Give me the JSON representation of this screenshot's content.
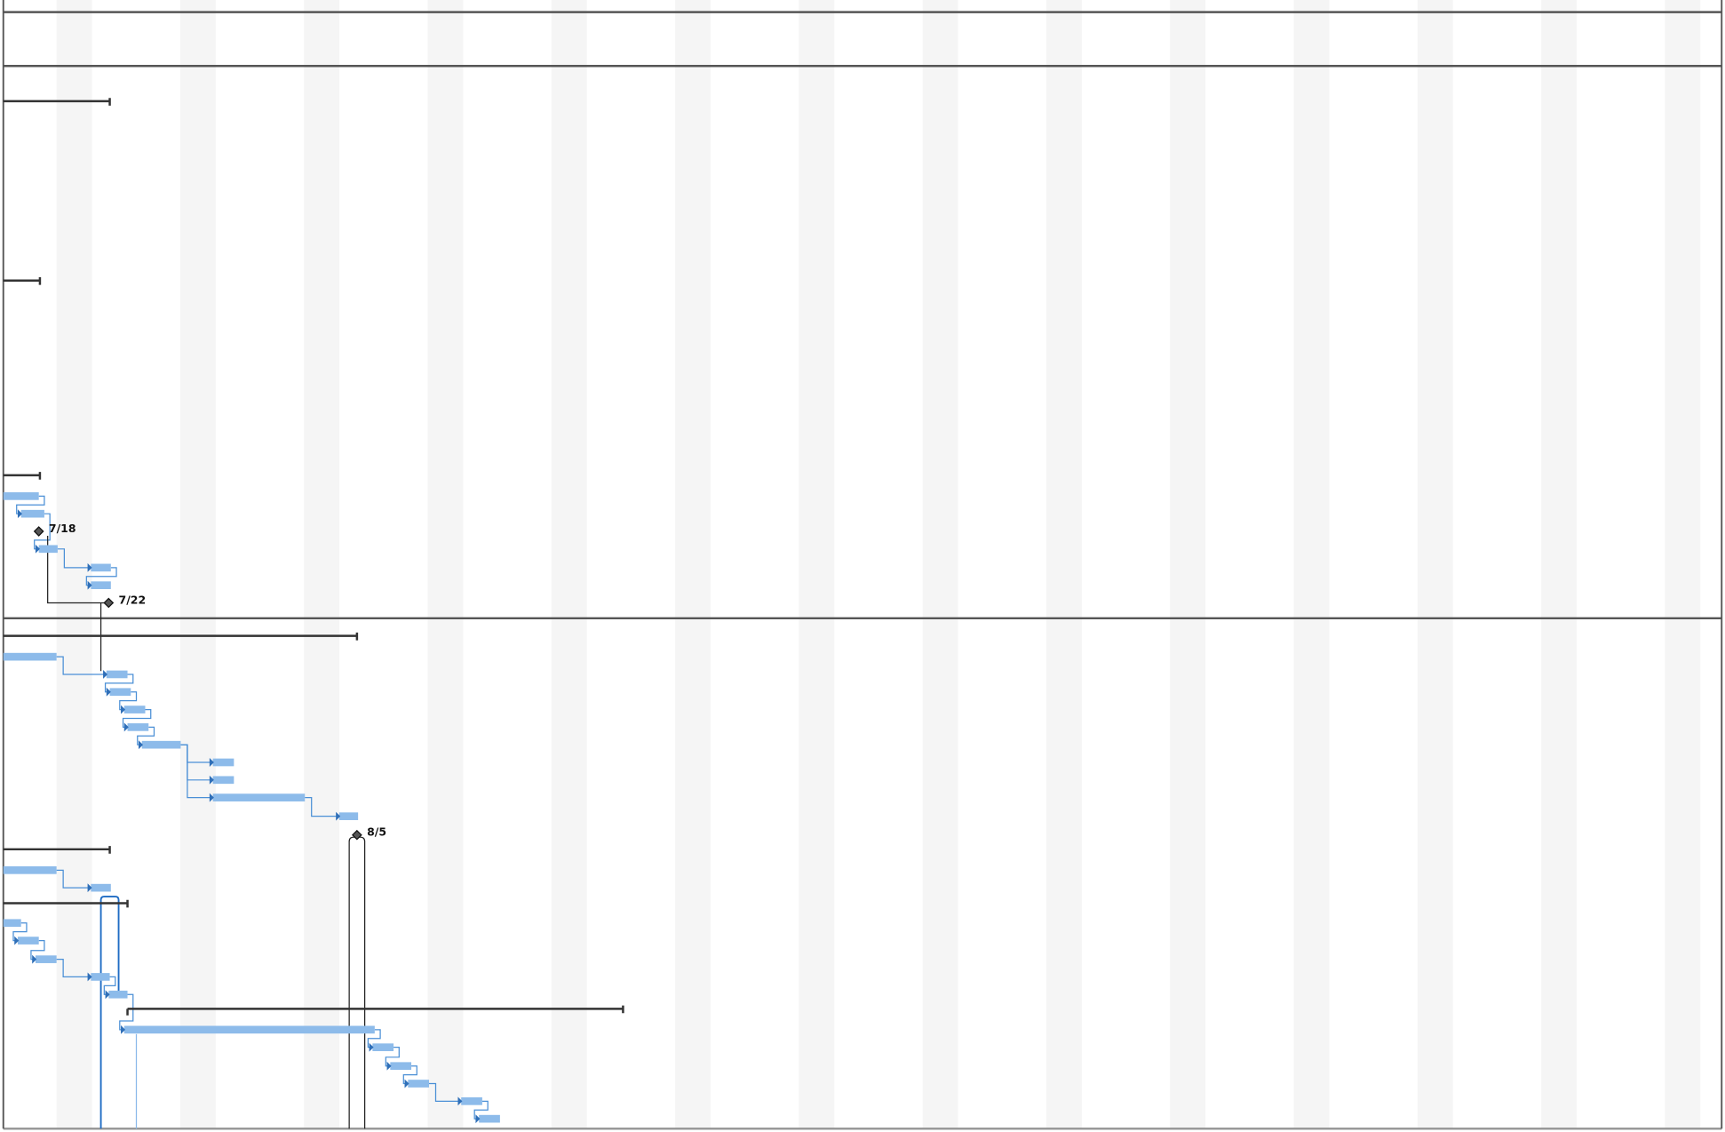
{
  "milestones": [
    {
      "label": "7/18"
    },
    {
      "label": "7/22"
    },
    {
      "label": "8/5"
    }
  ]
}
